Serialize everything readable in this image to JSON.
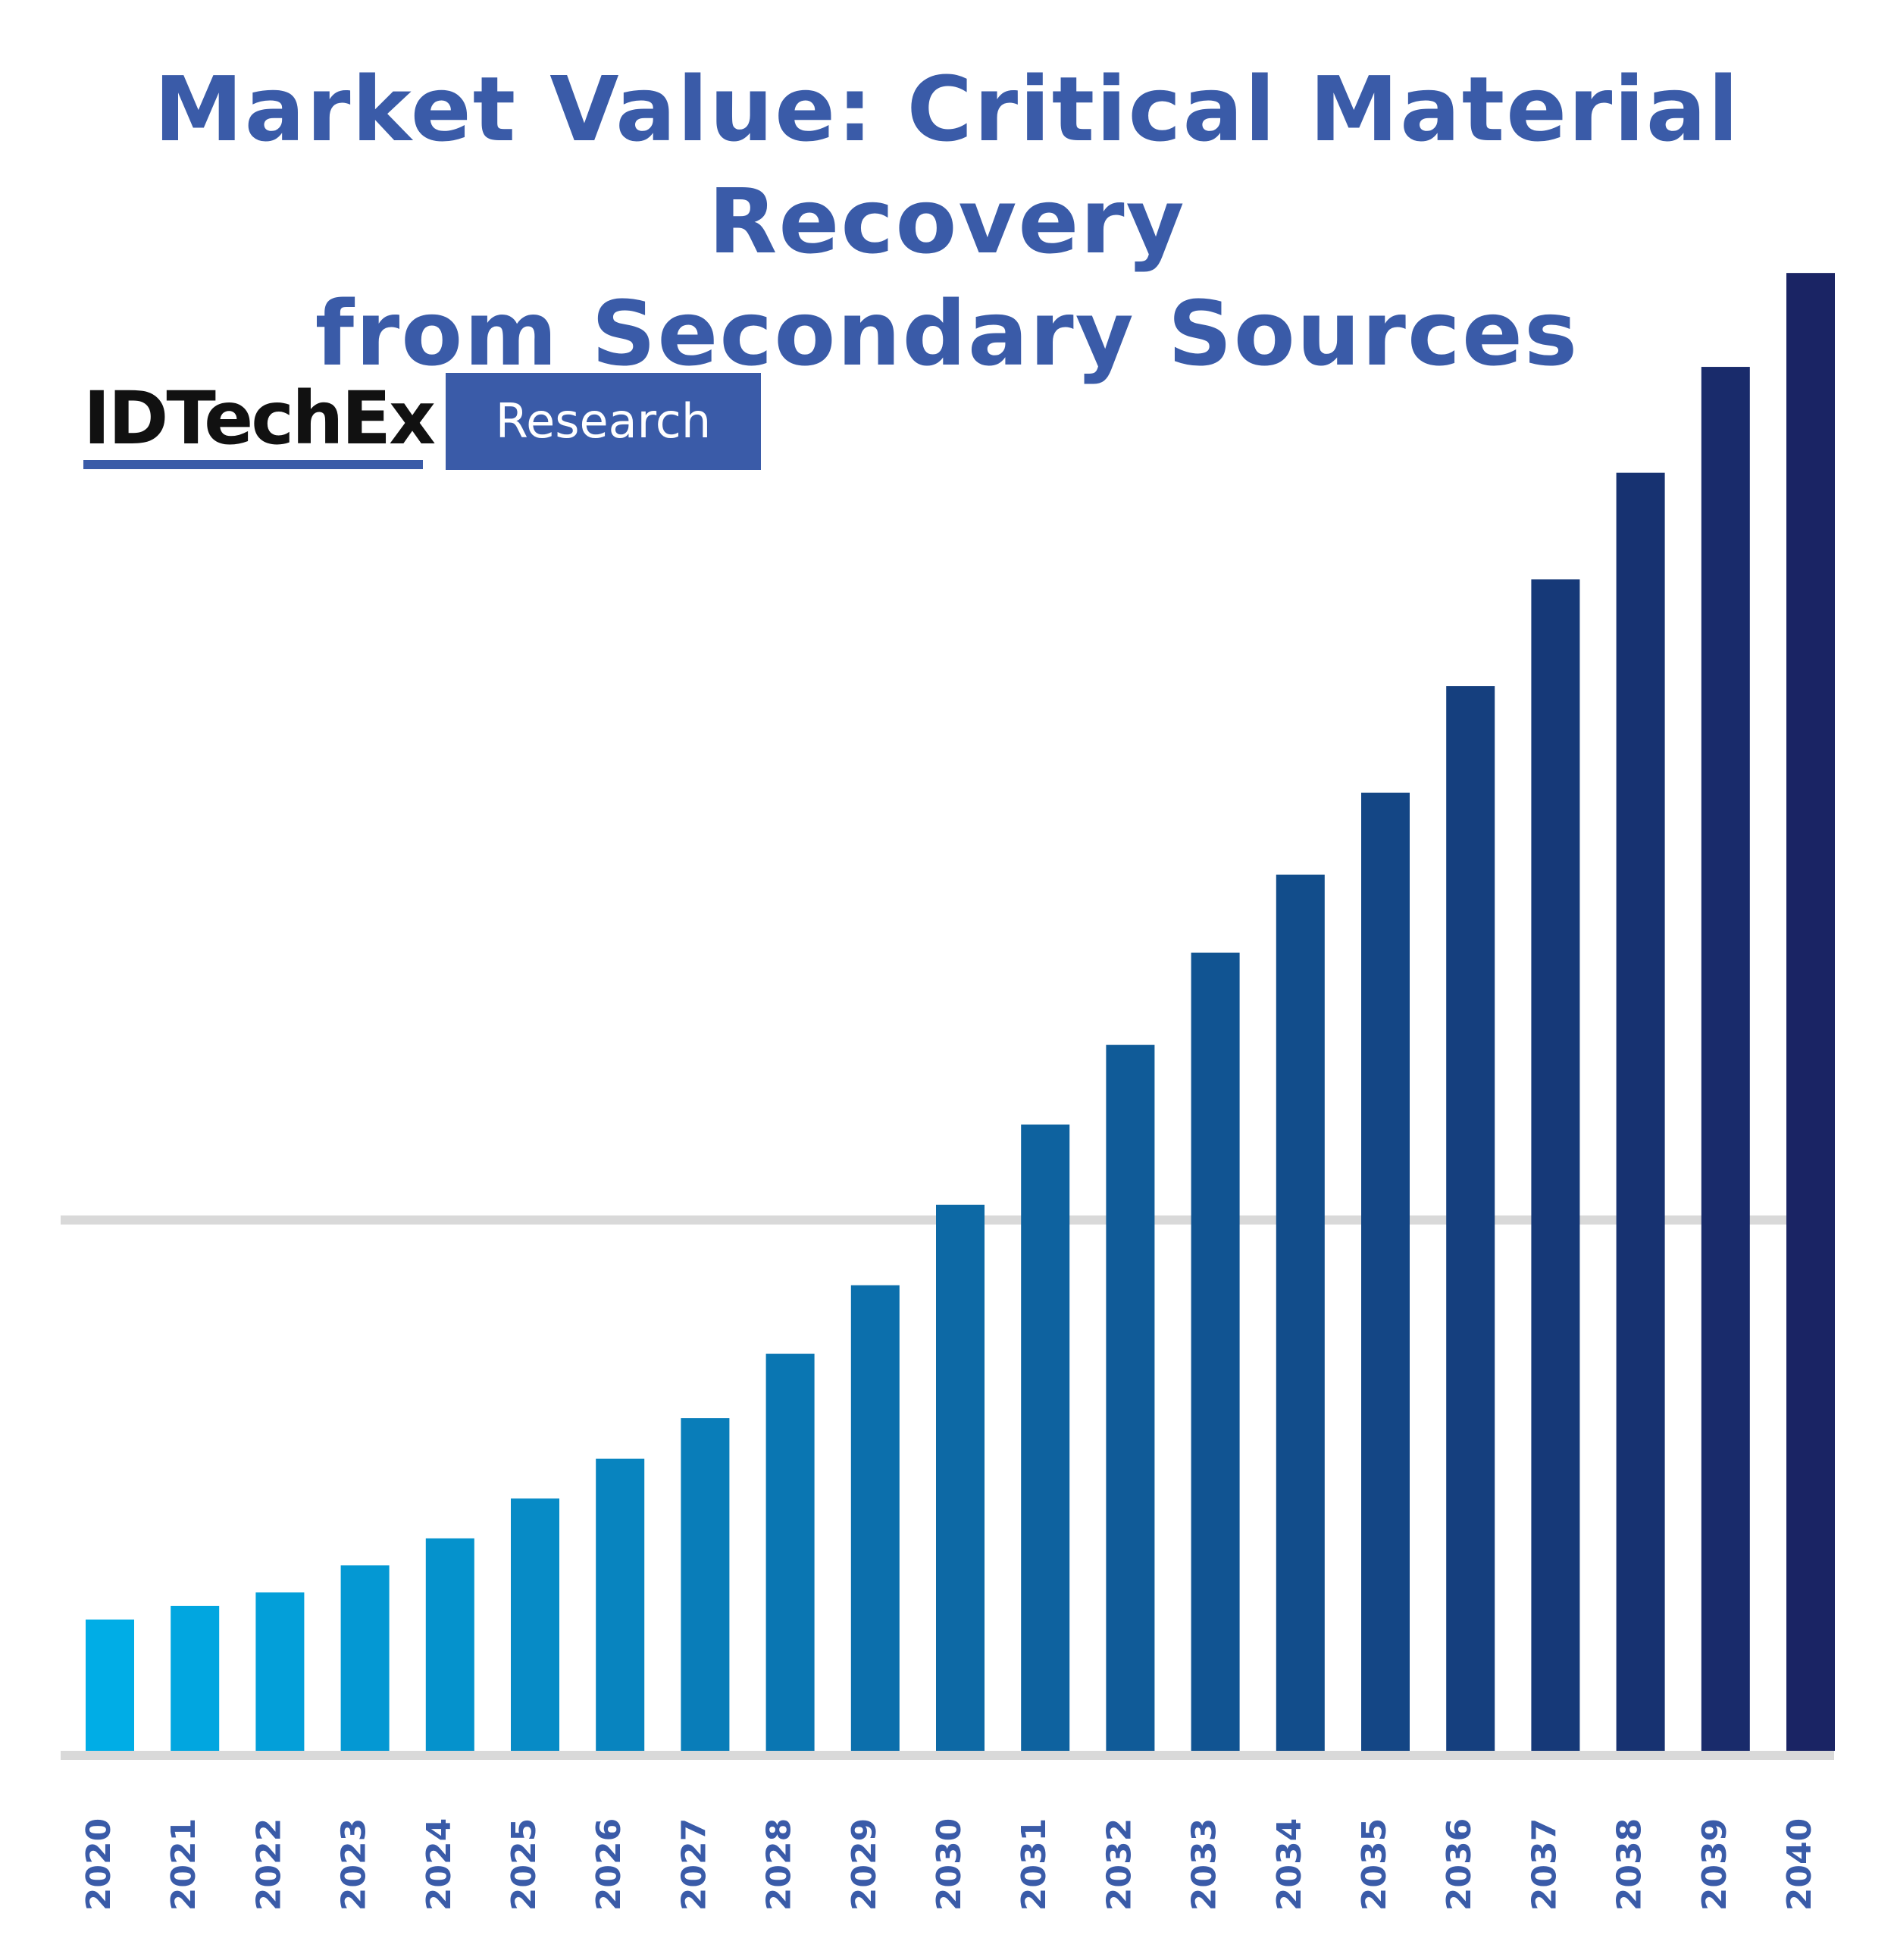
{
  "chart_data": {
    "type": "bar",
    "title": [
      "Market Value: Critical Material Recovery",
      "from Secondary Sources"
    ],
    "xlabel": "",
    "ylabel": "",
    "categories": [
      "2020",
      "2021",
      "2022",
      "2023",
      "2024",
      "2025",
      "2026",
      "2027",
      "2028",
      "2029",
      "2030",
      "2031",
      "2032",
      "2033",
      "2034",
      "2035",
      "2036",
      "2037",
      "2038",
      "2039",
      "2040"
    ],
    "values": [
      1.65,
      1.82,
      1.99,
      2.33,
      2.67,
      3.17,
      3.67,
      4.18,
      4.99,
      5.85,
      6.86,
      7.87,
      8.87,
      10.03,
      11.01,
      12.04,
      13.38,
      14.72,
      16.06,
      17.39,
      18.57
    ],
    "ylim": [
      0,
      20
    ],
    "gridlines": [
      0,
      6.67
    ],
    "grid": true,
    "colors": {
      "start": "#00ade6",
      "end": "#1a2464",
      "title": "#3a5ba8",
      "grid": "#d9d9d9",
      "tick": "#3a5ba8"
    }
  },
  "brand": {
    "name": "IDTechEx",
    "badge": "Research"
  }
}
